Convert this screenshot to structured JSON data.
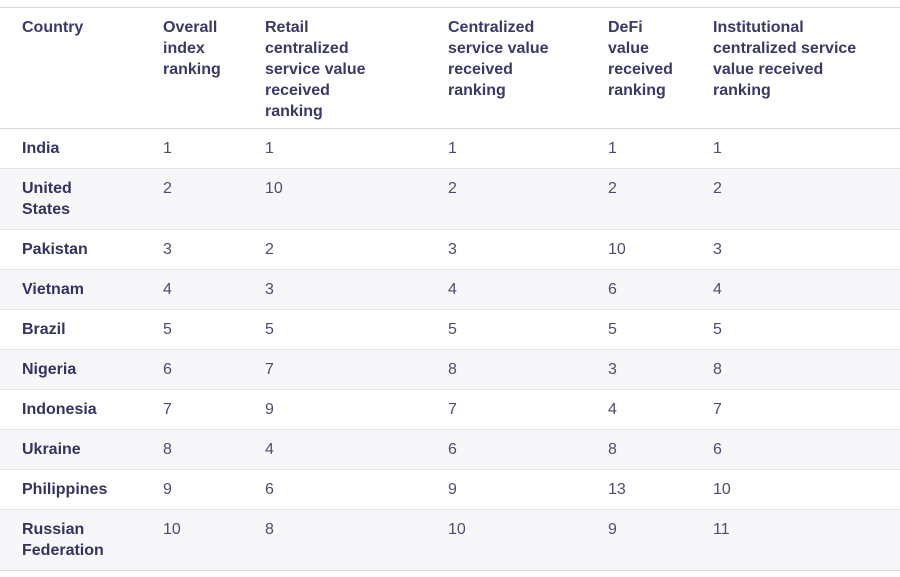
{
  "chart_data": {
    "type": "table",
    "columns": [
      "Country",
      "Overall index ranking",
      "Retail centralized service value received ranking",
      "Centralized service value received ranking",
      "DeFi value received ranking",
      "Institutional centralized service value received ranking"
    ],
    "rows": [
      [
        "India",
        1,
        1,
        1,
        1,
        1
      ],
      [
        "United States",
        2,
        10,
        2,
        2,
        2
      ],
      [
        "Pakistan",
        3,
        2,
        3,
        10,
        3
      ],
      [
        "Vietnam",
        4,
        3,
        4,
        6,
        4
      ],
      [
        "Brazil",
        5,
        5,
        5,
        5,
        5
      ],
      [
        "Nigeria",
        6,
        7,
        8,
        3,
        8
      ],
      [
        "Indonesia",
        7,
        9,
        7,
        4,
        7
      ],
      [
        "Ukraine",
        8,
        4,
        6,
        8,
        6
      ],
      [
        "Philippines",
        9,
        6,
        9,
        13,
        10
      ],
      [
        "Russian Federation",
        10,
        8,
        10,
        9,
        11
      ]
    ],
    "layout": {
      "grid": "horizontal-row-dividers",
      "zebra_striping": true,
      "first_row_background": "white"
    }
  },
  "colors": {
    "header_text": "#3a3968",
    "country_text": "#343362",
    "value_text": "#4d4d71",
    "alt_row_bg": "#f7f7f9",
    "row_border": "#e6e6e9",
    "outer_border": "#d9d9de",
    "page_bg": "#ffffff"
  }
}
